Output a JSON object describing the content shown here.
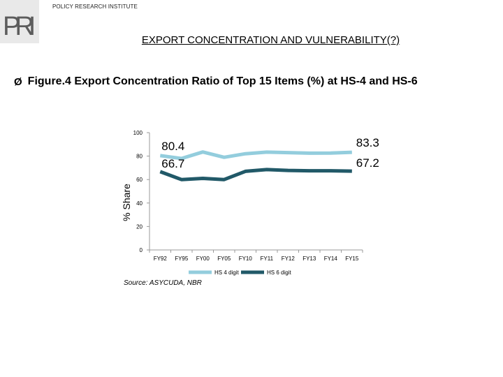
{
  "header": {
    "organization": "POLICY RESEARCH INSTITUTE",
    "logo_letters": "PRI"
  },
  "slide_title": "EXPORT CONCENTRATION AND VULNERABILITY(?)",
  "bullet": {
    "symbol": "Ø",
    "text": "Figure.4 Export Concentration Ratio of Top 15 Items (%) at HS-4 and HS-6"
  },
  "source": "Source: ASYCUDA, NBR",
  "colors": {
    "hs4": "#93cddd",
    "hs6": "#215968",
    "axis": "#9a9a9a"
  },
  "chart_data": {
    "type": "line",
    "title": "",
    "xlabel": "",
    "ylabel": "% Share",
    "ylim": [
      0,
      100
    ],
    "yticks": [
      0,
      20,
      40,
      60,
      80,
      100
    ],
    "categories": [
      "FY92",
      "FY95",
      "FY00",
      "FY05",
      "FY10",
      "FY11",
      "FY12",
      "FY13",
      "FY14",
      "FY15"
    ],
    "series": [
      {
        "name": "HS 4 digit",
        "values": [
          80.4,
          78,
          83.5,
          79,
          82,
          83.4,
          83,
          82.5,
          82.6,
          83.3
        ],
        "labels": [
          {
            "index": 0,
            "text": "80.4"
          },
          {
            "index": 9,
            "text": "83.3"
          }
        ]
      },
      {
        "name": "HS 6 digit",
        "values": [
          66.7,
          60,
          61,
          60,
          67,
          68.5,
          67.8,
          67.5,
          67.5,
          67.2
        ],
        "labels": [
          {
            "index": 0,
            "text": "66.7"
          },
          {
            "index": 9,
            "text": "67.2"
          }
        ]
      }
    ],
    "legend_position": "bottom"
  }
}
